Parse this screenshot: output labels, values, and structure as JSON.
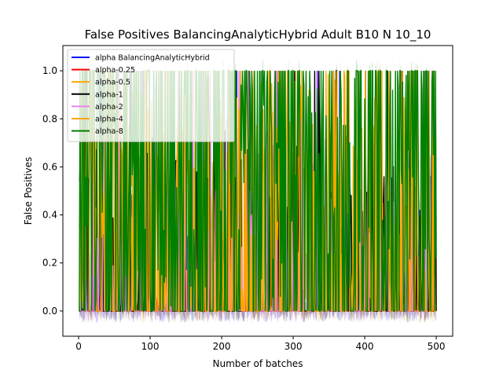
{
  "chart_data": {
    "type": "line",
    "title": "False Positives BalancingAnalyticHybrid Adult B10 N 10_10",
    "xlabel": "Number of batches",
    "ylabel": "False Positives",
    "xlim": [
      -22,
      523
    ],
    "ylim": [
      -0.105,
      1.105
    ],
    "x_ticks": [
      0,
      100,
      200,
      300,
      400,
      500
    ],
    "x_tick_labels": [
      "0",
      "100",
      "200",
      "300",
      "400",
      "500"
    ],
    "y_ticks": [
      0.0,
      0.2,
      0.4,
      0.6,
      0.8,
      1.0
    ],
    "y_tick_labels": [
      "0.0",
      "0.2",
      "0.4",
      "0.6",
      "0.8",
      "1.0"
    ],
    "grid": false,
    "legend_position": "top-left",
    "x_range": [
      1,
      500
    ],
    "series": [
      {
        "name": "alpha BalancingAnalyticHybrid",
        "color": "#0000ff",
        "level": 0.05,
        "density": 0.18,
        "band_low": -0.05,
        "band_high": 0.06
      },
      {
        "name": "alpha-0.25",
        "color": "#ff0000",
        "level": 0.0,
        "density": 0.02,
        "band_low": 0.0,
        "band_high": 0.0
      },
      {
        "name": "alpha-0.5",
        "color": "#ffa500",
        "level": 0.25,
        "density": 0.5,
        "band_low": -0.05,
        "band_high": 0.05
      },
      {
        "name": "alpha-1",
        "color": "#000000",
        "level": 0.15,
        "density": 0.4,
        "band_low": -0.05,
        "band_high": 0.05
      },
      {
        "name": "alpha-2",
        "color": "#ee82ee",
        "level": 0.2,
        "density": 0.45,
        "band_low": -0.05,
        "band_high": 0.05
      },
      {
        "name": "alpha-4",
        "color": "#ffa500",
        "level": 0.35,
        "density": 0.55,
        "band_low": -0.05,
        "band_high": 0.05
      },
      {
        "name": "alpha-8",
        "color": "#008000",
        "level": 0.55,
        "density": 0.7,
        "band_low": -0.05,
        "band_high": 0.05
      }
    ]
  }
}
